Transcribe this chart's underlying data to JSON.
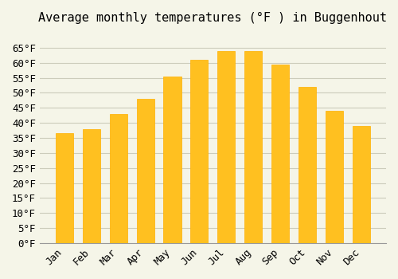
{
  "title": "Average monthly temperatures (°F ) in Buggenhout",
  "months": [
    "Jan",
    "Feb",
    "Mar",
    "Apr",
    "May",
    "Jun",
    "Jul",
    "Aug",
    "Sep",
    "Oct",
    "Nov",
    "Dec"
  ],
  "values": [
    36.5,
    38.0,
    43.0,
    48.0,
    55.5,
    61.0,
    64.0,
    64.0,
    59.5,
    52.0,
    44.0,
    39.0
  ],
  "bar_color_top": "#FFC020",
  "bar_color_bottom": "#FFB000",
  "ylim": [
    0,
    70
  ],
  "yticks": [
    0,
    5,
    10,
    15,
    20,
    25,
    30,
    35,
    40,
    45,
    50,
    55,
    60,
    65
  ],
  "background_color": "#F5F5E8",
  "grid_color": "#CCCCBB",
  "title_fontsize": 11,
  "tick_fontsize": 9
}
